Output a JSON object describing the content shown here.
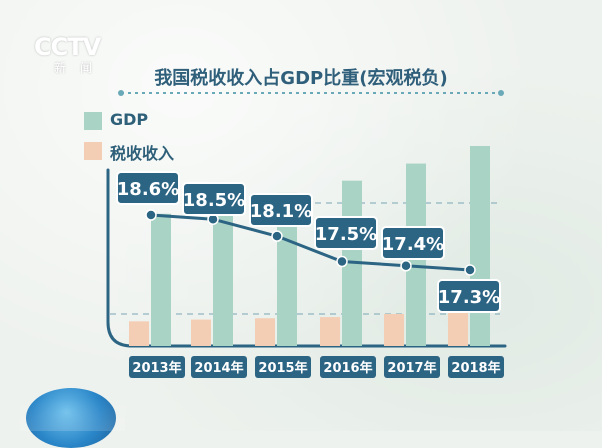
{
  "logo": {
    "brand": "CCTV",
    "sub": "新闻"
  },
  "chart_data": {
    "type": "bar",
    "title": "我国税收收入占GDP比重(宏观税负)",
    "categories": [
      "2013年",
      "2014年",
      "2015年",
      "2016年",
      "2017年",
      "2018年"
    ],
    "series": [
      {
        "name": "GDP",
        "values": [
          59.5,
          64.4,
          68.9,
          74.4,
          82.1,
          90.0
        ],
        "color": "#a9d3c4"
      },
      {
        "name": "税收收入",
        "values": [
          11.1,
          11.9,
          12.5,
          13.0,
          14.4,
          15.6
        ],
        "color": "#f4cdb5"
      }
    ],
    "ratio": {
      "values": [
        18.6,
        18.5,
        18.1,
        17.5,
        17.4,
        17.3
      ],
      "labels": [
        "18.6%",
        "18.5%",
        "18.1%",
        "17.5%",
        "17.4%",
        "17.3%"
      ],
      "color": "#2c6483"
    },
    "legend_position": "top-left"
  }
}
